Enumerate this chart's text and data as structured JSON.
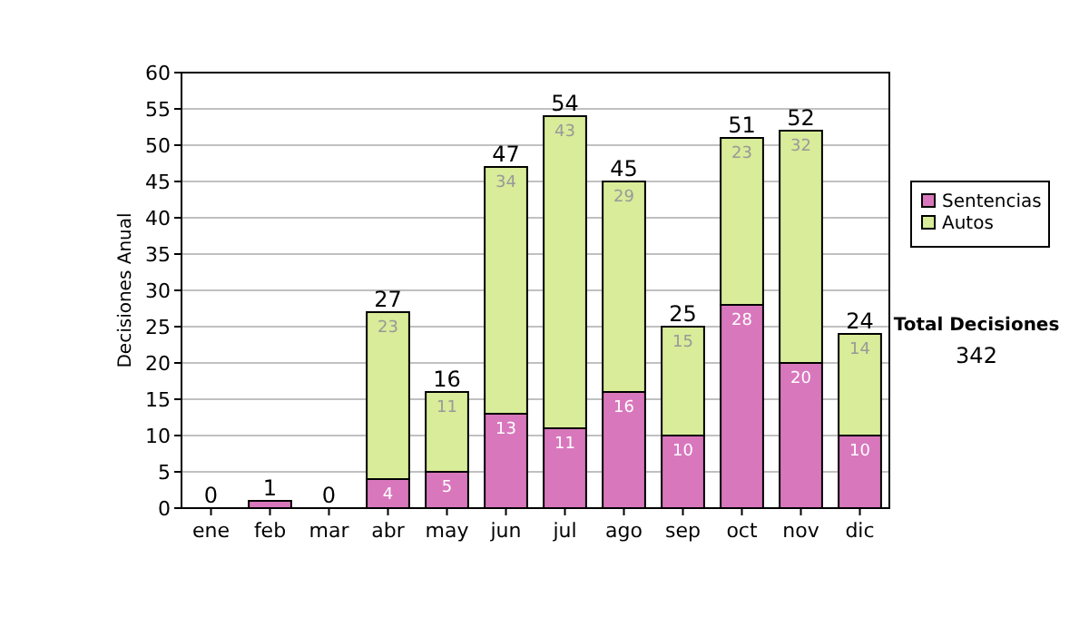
{
  "chart_data": {
    "type": "bar",
    "stacked": true,
    "ylabel": "Decisiones Anual",
    "categories": [
      "ene",
      "feb",
      "mar",
      "abr",
      "may",
      "jun",
      "jul",
      "ago",
      "sep",
      "oct",
      "nov",
      "dic"
    ],
    "series": [
      {
        "name": "Sentencias",
        "color": "#d977bd",
        "values": [
          0,
          1,
          0,
          4,
          5,
          13,
          11,
          16,
          10,
          28,
          20,
          10
        ],
        "value_labels": [
          null,
          null,
          null,
          "4",
          "5",
          "13",
          "11",
          "16",
          "10",
          "28",
          "20",
          "10"
        ]
      },
      {
        "name": "Autos",
        "color": "#d8ec99",
        "values": [
          0,
          0,
          0,
          23,
          11,
          34,
          43,
          29,
          15,
          23,
          32,
          14
        ],
        "value_labels": [
          null,
          null,
          null,
          "23",
          "11",
          "34",
          "43",
          "29",
          "15",
          "23",
          "32",
          "14"
        ]
      }
    ],
    "totals": [
      "0",
      "1",
      "0",
      "27",
      "16",
      "47",
      "54",
      "45",
      "25",
      "51",
      "52",
      "24"
    ],
    "ylim": [
      0,
      60
    ],
    "yticks": [
      0,
      5,
      10,
      15,
      20,
      25,
      30,
      35,
      40,
      45,
      50,
      55,
      60
    ],
    "grid": "y",
    "legend": "right",
    "annotations": [
      "Total Decisiones",
      "342"
    ]
  }
}
